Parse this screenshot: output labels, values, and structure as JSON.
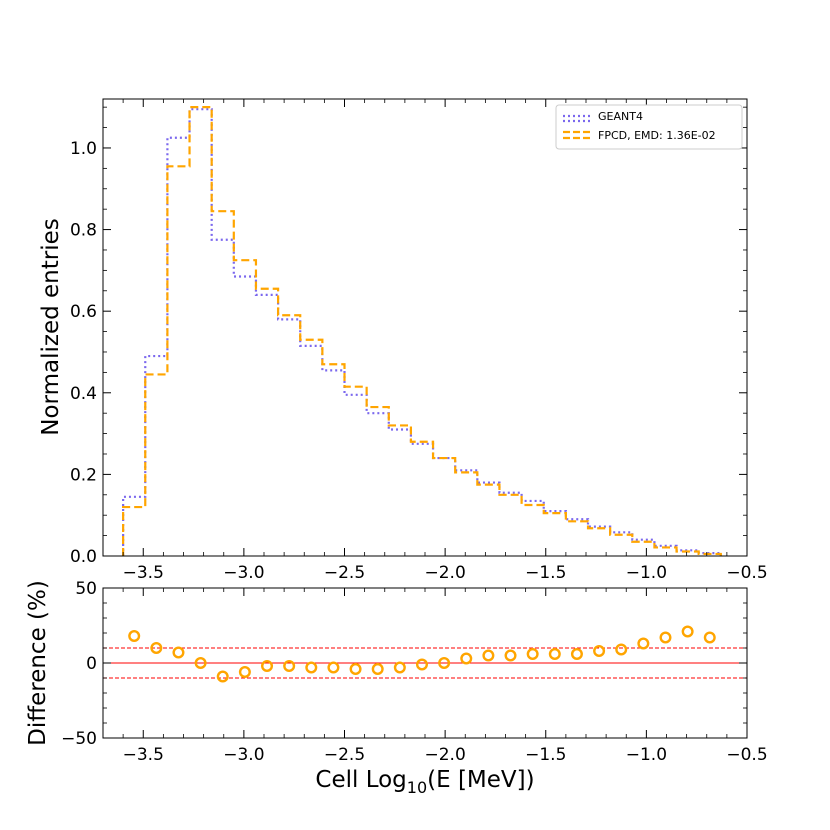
{
  "chart_data": [
    {
      "type": "step-histogram",
      "ylabel": "Normalized entries",
      "xlim": [
        -3.7,
        -0.5
      ],
      "ylim": [
        0,
        1.12
      ],
      "x_ticks": [
        -3.5,
        -3.0,
        -2.5,
        -2.0,
        -1.5,
        -1.0,
        -0.5
      ],
      "x_tick_labels": [
        "−3.5",
        "−3.0",
        "−2.5",
        "−2.0",
        "−1.5",
        "−1.0",
        "−0.5"
      ],
      "y_ticks": [
        0.0,
        0.2,
        0.4,
        0.6,
        0.8,
        1.0
      ],
      "y_tick_labels": [
        "0.0",
        "0.2",
        "0.4",
        "0.6",
        "0.8",
        "1.0"
      ],
      "legend_position": "top-right",
      "bin_edges": [
        -3.6,
        -3.49,
        -3.38,
        -3.27,
        -3.16,
        -3.05,
        -2.94,
        -2.83,
        -2.72,
        -2.61,
        -2.5,
        -2.39,
        -2.28,
        -2.17,
        -2.06,
        -1.95,
        -1.84,
        -1.73,
        -1.62,
        -1.51,
        -1.4,
        -1.29,
        -1.18,
        -1.07,
        -0.96,
        -0.85,
        -0.74,
        -0.63
      ],
      "series": [
        {
          "name": "GEANT4",
          "color": "#7b68ee",
          "style": "dotted",
          "values": [
            0.145,
            0.49,
            1.025,
            1.095,
            0.775,
            0.685,
            0.64,
            0.58,
            0.515,
            0.455,
            0.395,
            0.35,
            0.31,
            0.275,
            0.24,
            0.21,
            0.18,
            0.155,
            0.135,
            0.11,
            0.09,
            0.072,
            0.058,
            0.04,
            0.025,
            0.014,
            0.007
          ]
        },
        {
          "name": "FPCD, EMD: 1.36E-02",
          "color": "#ffa500",
          "style": "dashed",
          "values": [
            0.12,
            0.445,
            0.955,
            1.1,
            0.845,
            0.725,
            0.655,
            0.59,
            0.53,
            0.47,
            0.415,
            0.365,
            0.32,
            0.28,
            0.24,
            0.205,
            0.175,
            0.15,
            0.125,
            0.105,
            0.085,
            0.068,
            0.052,
            0.035,
            0.021,
            0.011,
            0.005
          ]
        }
      ]
    },
    {
      "type": "scatter",
      "xlabel": "Cell Log",
      "xlabel_sub": "10",
      "xlabel_suffix": "(E [MeV])",
      "ylabel": "Difference (%)",
      "xlim": [
        -3.7,
        -0.5
      ],
      "ylim": [
        -50,
        50
      ],
      "x_ticks": [
        -3.5,
        -3.0,
        -2.5,
        -2.0,
        -1.5,
        -1.0,
        -0.5
      ],
      "x_tick_labels": [
        "−3.5",
        "−3.0",
        "−2.5",
        "−2.0",
        "−1.5",
        "−1.0",
        "−0.5"
      ],
      "y_ticks": [
        -50,
        0,
        50
      ],
      "y_tick_labels": [
        "−50",
        "0",
        "50"
      ],
      "reference_lines": [
        {
          "y": 0,
          "style": "solid",
          "color": "#ff0000"
        },
        {
          "y": 10,
          "style": "dashed",
          "color": "#ff0000"
        },
        {
          "y": -10,
          "style": "dashed",
          "color": "#ff0000"
        }
      ],
      "marker_color": "#ffa500",
      "x": [
        -3.545,
        -3.435,
        -3.325,
        -3.215,
        -3.105,
        -2.995,
        -2.885,
        -2.775,
        -2.665,
        -2.555,
        -2.445,
        -2.335,
        -2.225,
        -2.115,
        -2.005,
        -1.895,
        -1.785,
        -1.675,
        -1.565,
        -1.455,
        -1.345,
        -1.235,
        -1.125,
        -1.015,
        -0.905,
        -0.795,
        -0.685
      ],
      "y": [
        18,
        10,
        7,
        0,
        -9,
        -6,
        -2,
        -2,
        -3,
        -3,
        -4,
        -4,
        -3,
        -1,
        0,
        3,
        5,
        5,
        6,
        6,
        6,
        8,
        9,
        13,
        17,
        21,
        17
      ]
    }
  ]
}
